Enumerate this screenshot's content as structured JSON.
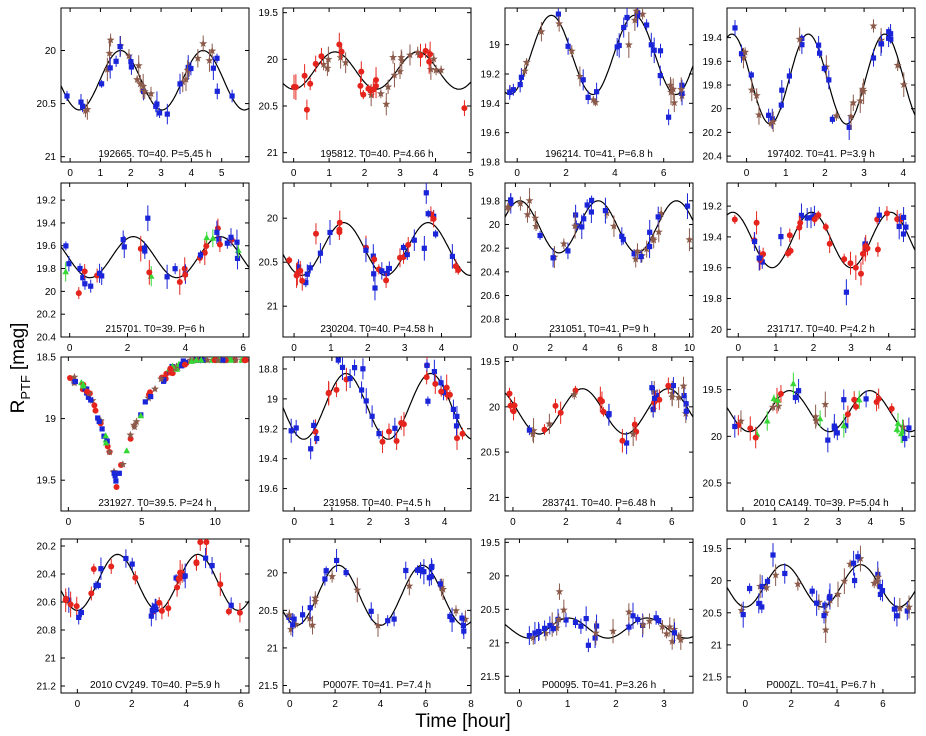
{
  "figure": {
    "xlabel": "Time [hour]",
    "ylabel_main": "R",
    "ylabel_sub": "PTF",
    "ylabel_unit": "[mag]"
  },
  "chart_data": [
    {
      "type": "scatter",
      "label": "192665. T0=40. P=5.45 h",
      "period": 5.45,
      "xlim": [
        -0.3,
        5.9
      ],
      "ylim": [
        21.05,
        19.6
      ],
      "xticks": [
        0,
        1,
        2,
        3,
        4,
        5
      ],
      "yticks": [
        20,
        20.5,
        21
      ],
      "amp": 0.28,
      "mean": 20.28,
      "phase": 0.3,
      "series": [
        "brown",
        "blue"
      ]
    },
    {
      "type": "scatter",
      "label": "195812. T0=40. P=4.66 h",
      "period": 4.66,
      "xlim": [
        -0.3,
        5.0
      ],
      "ylim": [
        21.1,
        19.45
      ],
      "xticks": [
        0,
        1,
        2,
        3,
        4,
        5
      ],
      "yticks": [
        19.5,
        20,
        20.5,
        21
      ],
      "amp": 0.2,
      "mean": 20.12,
      "phase": 0.0,
      "series": [
        "red",
        "brown"
      ]
    },
    {
      "type": "scatter",
      "label": "196214. T0=41. P=6.8 h",
      "period": 6.8,
      "xlim": [
        -0.5,
        7.2
      ],
      "ylim": [
        19.8,
        18.75
      ],
      "xticks": [
        0,
        2,
        4,
        6
      ],
      "yticks": [
        19,
        19.2,
        19.4,
        19.6,
        19.8
      ],
      "amp": 0.27,
      "mean": 19.07,
      "phase": -0.3,
      "series": [
        "blue",
        "brown"
      ]
    },
    {
      "type": "scatter",
      "label": "197402. T0=41. P=3.9 h",
      "period": 3.9,
      "xlim": [
        -0.5,
        4.3
      ],
      "ylim": [
        20.45,
        19.15
      ],
      "xticks": [
        0,
        1,
        2,
        3,
        4
      ],
      "yticks": [
        19.4,
        19.6,
        19.8,
        20,
        20.2,
        20.4
      ],
      "amp": 0.38,
      "mean": 19.75,
      "phase": 0.6,
      "series": [
        "blue",
        "brown"
      ]
    },
    {
      "type": "scatter",
      "label": "215701. T0=39. P=6 h",
      "period": 6,
      "xlim": [
        -0.3,
        6.2
      ],
      "ylim": [
        20.4,
        19.05
      ],
      "xticks": [
        0,
        2,
        4,
        6
      ],
      "yticks": [
        19.2,
        19.4,
        19.6,
        19.8,
        20,
        20.2,
        20.4
      ],
      "amp": 0.18,
      "mean": 19.7,
      "phase": 0.7,
      "series": [
        "red",
        "blue",
        "green"
      ]
    },
    {
      "type": "scatter",
      "label": "230204. T0=40. P=4.58 h",
      "period": 4.58,
      "xlim": [
        -0.3,
        4.8
      ],
      "ylim": [
        21.35,
        19.6
      ],
      "xticks": [
        0,
        1,
        2,
        3,
        4
      ],
      "yticks": [
        20,
        20.5,
        21
      ],
      "amp": 0.3,
      "mean": 20.35,
      "phase": 0.2,
      "series": [
        "blue",
        "red"
      ]
    },
    {
      "type": "scatter",
      "label": "231051. T0=41. P=9 h",
      "period": 9,
      "xlim": [
        -0.6,
        10.2
      ],
      "ylim": [
        20.95,
        19.65
      ],
      "xticks": [
        0,
        2,
        4,
        6,
        8,
        10
      ],
      "yticks": [
        19.8,
        20,
        20.2,
        20.4,
        20.6,
        20.8
      ],
      "amp": 0.22,
      "mean": 20.02,
      "phase": 2.5,
      "series": [
        "blue",
        "brown"
      ]
    },
    {
      "type": "scatter",
      "label": "231717. T0=40. P=4.2 h",
      "period": 4.2,
      "xlim": [
        -0.3,
        4.7
      ],
      "ylim": [
        20.05,
        19.05
      ],
      "xticks": [
        0,
        1,
        2,
        3,
        4
      ],
      "yticks": [
        19.2,
        19.4,
        19.6,
        19.8,
        20
      ],
      "amp": 0.18,
      "mean": 19.42,
      "phase": 0.9,
      "series": [
        "red",
        "blue"
      ]
    },
    {
      "type": "scatter",
      "label": "231927. T0=39.5. P=24 h",
      "period": 24,
      "xlim": [
        -0.5,
        12.3
      ],
      "ylim": [
        19.75,
        18.5
      ],
      "xticks": [
        0,
        5,
        10
      ],
      "yticks": [
        18.5,
        19,
        19.5
      ],
      "series": [
        "brown",
        "blue",
        "red",
        "green"
      ]
    },
    {
      "type": "scatter",
      "label": "231958. T0=40. P=4.5 h",
      "period": 4.5,
      "xlim": [
        -0.3,
        4.7
      ],
      "ylim": [
        19.75,
        18.72
      ],
      "xticks": [
        0,
        1,
        2,
        3,
        4
      ],
      "yticks": [
        18.8,
        19,
        19.2,
        19.4,
        19.6
      ],
      "amp": 0.22,
      "mean": 19.05,
      "phase": 0.25,
      "series": [
        "red",
        "blue"
      ]
    },
    {
      "type": "scatter",
      "label": "283741. T0=40. P=6.48 h",
      "period": 6.48,
      "xlim": [
        -0.3,
        6.8
      ],
      "ylim": [
        21.15,
        19.45
      ],
      "xticks": [
        0,
        2,
        4,
        6
      ],
      "yticks": [
        19.5,
        20,
        20.5,
        21
      ],
      "amp": 0.25,
      "mean": 20.05,
      "phase": 1.0,
      "series": [
        "brown",
        "blue",
        "red"
      ]
    },
    {
      "type": "scatter",
      "label": "2010 CA149. T0=39. P=5.04 h",
      "period": 5.04,
      "xlim": [
        -0.5,
        5.4
      ],
      "ylim": [
        20.8,
        19.15
      ],
      "xticks": [
        0,
        1,
        2,
        3,
        4,
        5
      ],
      "yticks": [
        19.5,
        20,
        20.5
      ],
      "amp": 0.22,
      "mean": 19.73,
      "phase": 0.2,
      "series": [
        "blue",
        "red",
        "brown",
        "green"
      ]
    },
    {
      "type": "scatter",
      "label": "2010 CV249. T0=40. P=5.9 h",
      "period": 5.9,
      "xlim": [
        -0.6,
        6.3
      ],
      "ylim": [
        21.25,
        20.15
      ],
      "xticks": [
        0,
        2,
        4,
        6
      ],
      "yticks": [
        20.2,
        20.4,
        20.6,
        20.8,
        21,
        21.2
      ],
      "amp": 0.2,
      "mean": 20.46,
      "phase": 0.0,
      "series": [
        "blue",
        "red"
      ]
    },
    {
      "type": "scatter",
      "label": "P0007F. T0=41. P=7.4 h",
      "period": 7.4,
      "xlim": [
        -0.3,
        8.0
      ],
      "ylim": [
        21.6,
        19.55
      ],
      "xticks": [
        0,
        2,
        4,
        6,
        8
      ],
      "yticks": [
        20,
        20.5,
        21,
        21.5
      ],
      "amp": 0.4,
      "mean": 20.3,
      "phase": 0.3,
      "series": [
        "blue",
        "brown"
      ]
    },
    {
      "type": "scatter",
      "label": "P00095. T0=41. P=3.26 h",
      "period": 3.26,
      "xlim": [
        -0.3,
        3.6
      ],
      "ylim": [
        21.75,
        19.45
      ],
      "xticks": [
        0,
        1,
        2,
        3
      ],
      "yticks": [
        19.5,
        20,
        20.5,
        21,
        21.5
      ],
      "amp": 0.15,
      "mean": 20.78,
      "phase": 0.2,
      "series": [
        "blue",
        "brown"
      ]
    },
    {
      "type": "scatter",
      "label": "P000ZL. T0=41. P=6.7 h",
      "period": 6.7,
      "xlim": [
        -0.8,
        7.4
      ],
      "ylim": [
        21.75,
        19.35
      ],
      "xticks": [
        0,
        2,
        4,
        6
      ],
      "yticks": [
        19.5,
        20,
        20.5,
        21,
        21.5
      ],
      "amp": 0.33,
      "mean": 20.08,
      "phase": 0.0,
      "series": [
        "blue",
        "brown"
      ]
    }
  ],
  "colors": {
    "blue": "#1a24d8",
    "red": "#e5241d",
    "brown": "#8b5a4a",
    "green": "#35d835",
    "model": "#000000"
  }
}
